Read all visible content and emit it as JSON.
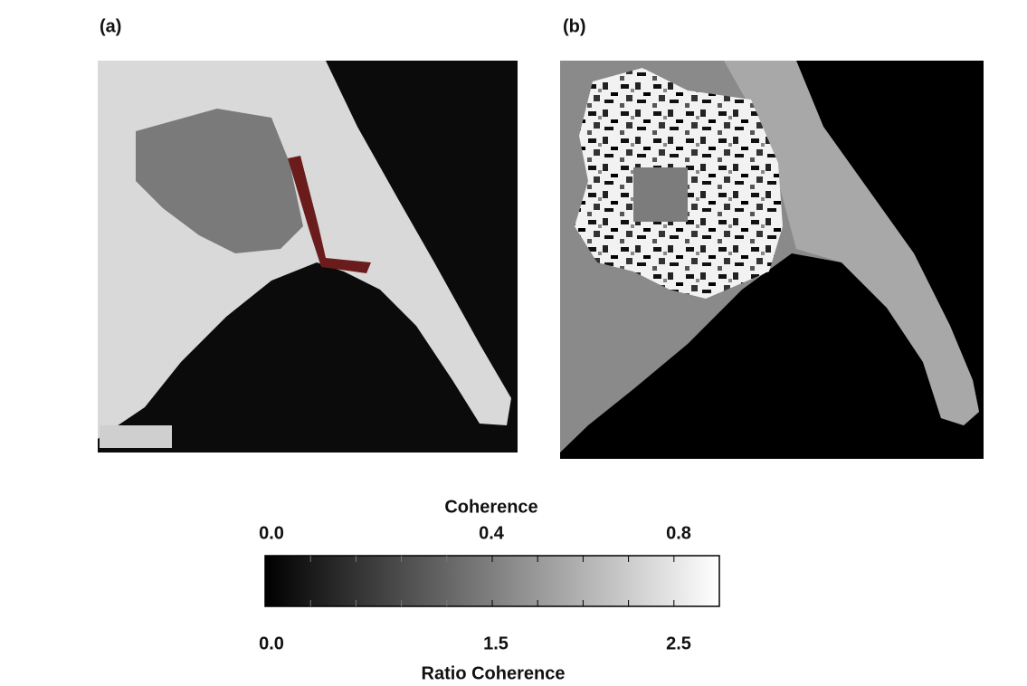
{
  "panels": [
    {
      "label": "(a)"
    },
    {
      "label": "(b)"
    }
  ],
  "colorbar": {
    "top_title": "Coherence",
    "top_ticks": [
      "0.0",
      "0.4",
      "0.8"
    ],
    "bottom_ticks": [
      "0.0",
      "1.5",
      "2.5"
    ],
    "bottom_title": "Ratio Coherence"
  }
}
